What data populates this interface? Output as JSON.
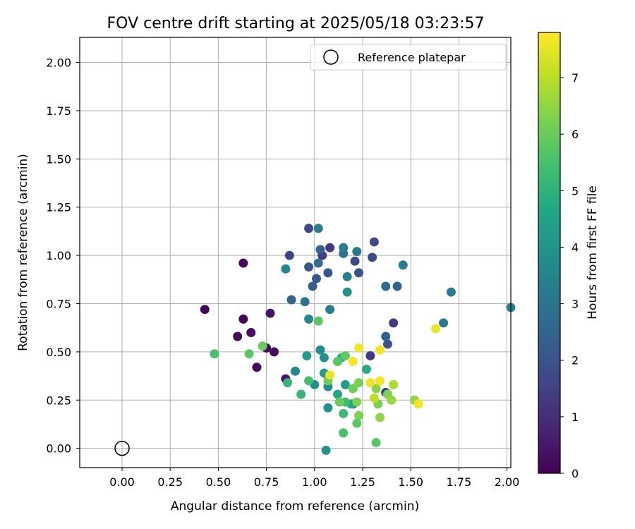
{
  "chart_data": {
    "type": "scatter",
    "title": "FOV centre drift starting at 2025/05/18 03:23:57",
    "xlabel": "Angular distance from reference (arcmin)",
    "ylabel": "Rotation from reference (arcmin)",
    "xlim": [
      -0.22,
      2.02
    ],
    "ylim": [
      -0.1,
      2.13
    ],
    "xticks": [
      "0.00",
      "0.25",
      "0.50",
      "0.75",
      "1.00",
      "1.25",
      "1.50",
      "1.75",
      "2.00"
    ],
    "yticks": [
      "0.00",
      "0.25",
      "0.50",
      "0.75",
      "1.00",
      "1.25",
      "1.50",
      "1.75",
      "2.00"
    ],
    "grid": true,
    "legend": {
      "placement": "top-right",
      "entries": [
        "Reference platepar"
      ]
    },
    "reference_point": {
      "x": 0.0,
      "y": 0.0
    },
    "colorbar": {
      "label": "Hours from first FF file",
      "colormap": "viridis",
      "range": [
        0,
        7.8
      ],
      "ticks": [
        "0",
        "1",
        "2",
        "3",
        "4",
        "5",
        "6",
        "7"
      ]
    },
    "points": [
      {
        "x": 0.43,
        "y": 0.72,
        "h": 0.1
      },
      {
        "x": 0.63,
        "y": 0.96,
        "h": 0.1
      },
      {
        "x": 0.63,
        "y": 0.67,
        "h": 0.1
      },
      {
        "x": 0.6,
        "y": 0.58,
        "h": 0.2
      },
      {
        "x": 0.67,
        "y": 0.6,
        "h": 0.3
      },
      {
        "x": 0.7,
        "y": 0.42,
        "h": 0.2
      },
      {
        "x": 0.75,
        "y": 0.52,
        "h": 0.2
      },
      {
        "x": 0.77,
        "y": 0.7,
        "h": 0.4
      },
      {
        "x": 0.79,
        "y": 0.5,
        "h": 0.3
      },
      {
        "x": 0.85,
        "y": 0.36,
        "h": 0.4
      },
      {
        "x": 1.29,
        "y": 0.48,
        "h": 1.3
      },
      {
        "x": 1.41,
        "y": 0.65,
        "h": 1.3
      },
      {
        "x": 1.37,
        "y": 0.29,
        "h": 1.4
      },
      {
        "x": 1.08,
        "y": 1.04,
        "h": 1.3
      },
      {
        "x": 1.04,
        "y": 1.0,
        "h": 1.4
      },
      {
        "x": 0.87,
        "y": 1.0,
        "h": 1.6
      },
      {
        "x": 0.97,
        "y": 1.14,
        "h": 1.7
      },
      {
        "x": 1.31,
        "y": 1.07,
        "h": 1.7
      },
      {
        "x": 1.3,
        "y": 0.99,
        "h": 1.8
      },
      {
        "x": 1.21,
        "y": 0.97,
        "h": 1.8
      },
      {
        "x": 1.23,
        "y": 0.91,
        "h": 2.0
      },
      {
        "x": 1.07,
        "y": 0.91,
        "h": 2.1
      },
      {
        "x": 0.97,
        "y": 0.94,
        "h": 2.0
      },
      {
        "x": 1.01,
        "y": 0.88,
        "h": 2.2
      },
      {
        "x": 0.99,
        "y": 0.84,
        "h": 2.3
      },
      {
        "x": 1.38,
        "y": 0.54,
        "h": 2.0
      },
      {
        "x": 1.2,
        "y": 0.23,
        "h": 2.2
      },
      {
        "x": 1.03,
        "y": 1.03,
        "h": 2.4
      },
      {
        "x": 1.37,
        "y": 0.58,
        "h": 2.4
      },
      {
        "x": 0.88,
        "y": 0.77,
        "h": 2.6
      },
      {
        "x": 1.43,
        "y": 0.84,
        "h": 2.5
      },
      {
        "x": 1.37,
        "y": 0.84,
        "h": 2.7
      },
      {
        "x": 1.02,
        "y": 0.96,
        "h": 2.8
      },
      {
        "x": 1.15,
        "y": 1.01,
        "h": 3.0
      },
      {
        "x": 1.22,
        "y": 1.02,
        "h": 3.1
      },
      {
        "x": 1.02,
        "y": 1.14,
        "h": 3.2
      },
      {
        "x": 1.15,
        "y": 1.04,
        "h": 3.2
      },
      {
        "x": 0.95,
        "y": 0.76,
        "h": 3.0
      },
      {
        "x": 1.08,
        "y": 0.72,
        "h": 3.3
      },
      {
        "x": 1.46,
        "y": 0.95,
        "h": 3.2
      },
      {
        "x": 1.71,
        "y": 0.81,
        "h": 3.3
      },
      {
        "x": 1.67,
        "y": 0.65,
        "h": 3.3
      },
      {
        "x": 2.02,
        "y": 0.73,
        "h": 3.4
      },
      {
        "x": 1.17,
        "y": 0.89,
        "h": 3.3
      },
      {
        "x": 0.85,
        "y": 0.93,
        "h": 3.6
      },
      {
        "x": 0.9,
        "y": 0.4,
        "h": 3.6
      },
      {
        "x": 0.97,
        "y": 0.67,
        "h": 3.6
      },
      {
        "x": 1.17,
        "y": 0.81,
        "h": 3.9
      },
      {
        "x": 1.03,
        "y": 0.51,
        "h": 3.8
      },
      {
        "x": 1.05,
        "y": 0.47,
        "h": 3.9
      },
      {
        "x": 1.0,
        "y": 0.33,
        "h": 3.9
      },
      {
        "x": 1.07,
        "y": 0.32,
        "h": 3.8
      },
      {
        "x": 1.07,
        "y": 0.21,
        "h": 3.9
      },
      {
        "x": 1.06,
        "y": -0.01,
        "h": 4.0
      },
      {
        "x": 0.96,
        "y": 0.48,
        "h": 4.2
      },
      {
        "x": 1.05,
        "y": 0.39,
        "h": 4.3
      },
      {
        "x": 1.16,
        "y": 0.33,
        "h": 4.3
      },
      {
        "x": 1.12,
        "y": 0.28,
        "h": 4.6
      },
      {
        "x": 1.19,
        "y": 0.23,
        "h": 4.6
      },
      {
        "x": 1.27,
        "y": 0.41,
        "h": 4.8
      },
      {
        "x": 1.14,
        "y": 0.47,
        "h": 5.0
      },
      {
        "x": 0.86,
        "y": 0.34,
        "h": 5.1
      },
      {
        "x": 0.93,
        "y": 0.28,
        "h": 5.1
      },
      {
        "x": 0.97,
        "y": 0.35,
        "h": 5.4
      },
      {
        "x": 1.16,
        "y": 0.24,
        "h": 5.3
      },
      {
        "x": 1.15,
        "y": 0.18,
        "h": 5.3
      },
      {
        "x": 1.15,
        "y": 0.08,
        "h": 5.5
      },
      {
        "x": 1.32,
        "y": 0.03,
        "h": 5.7
      },
      {
        "x": 0.48,
        "y": 0.49,
        "h": 5.5
      },
      {
        "x": 0.66,
        "y": 0.49,
        "h": 5.8
      },
      {
        "x": 0.73,
        "y": 0.53,
        "h": 6.0
      },
      {
        "x": 1.02,
        "y": 0.66,
        "h": 5.8
      },
      {
        "x": 1.12,
        "y": 0.45,
        "h": 5.7
      },
      {
        "x": 1.16,
        "y": 0.48,
        "h": 5.9
      },
      {
        "x": 1.07,
        "y": 0.35,
        "h": 6.1
      },
      {
        "x": 1.13,
        "y": 0.24,
        "h": 6.0
      },
      {
        "x": 1.2,
        "y": 0.31,
        "h": 6.1
      },
      {
        "x": 1.22,
        "y": 0.24,
        "h": 6.3
      },
      {
        "x": 1.23,
        "y": 0.34,
        "h": 6.2
      },
      {
        "x": 1.23,
        "y": 0.17,
        "h": 6.3
      },
      {
        "x": 1.22,
        "y": 0.13,
        "h": 5.8
      },
      {
        "x": 1.32,
        "y": 0.31,
        "h": 6.4
      },
      {
        "x": 1.33,
        "y": 0.23,
        "h": 6.2
      },
      {
        "x": 1.34,
        "y": 0.16,
        "h": 6.5
      },
      {
        "x": 1.38,
        "y": 0.28,
        "h": 6.3
      },
      {
        "x": 1.4,
        "y": 0.25,
        "h": 6.6
      },
      {
        "x": 1.41,
        "y": 0.33,
        "h": 6.8
      },
      {
        "x": 1.52,
        "y": 0.25,
        "h": 6.5
      },
      {
        "x": 1.31,
        "y": 0.26,
        "h": 7.0
      },
      {
        "x": 1.08,
        "y": 0.38,
        "h": 7.6
      },
      {
        "x": 1.2,
        "y": 0.45,
        "h": 7.7
      },
      {
        "x": 1.23,
        "y": 0.52,
        "h": 7.7
      },
      {
        "x": 1.29,
        "y": 0.34,
        "h": 7.6
      },
      {
        "x": 1.34,
        "y": 0.35,
        "h": 7.7
      },
      {
        "x": 1.34,
        "y": 0.51,
        "h": 7.7
      },
      {
        "x": 1.54,
        "y": 0.23,
        "h": 7.7
      },
      {
        "x": 1.63,
        "y": 0.62,
        "h": 7.6
      }
    ]
  }
}
